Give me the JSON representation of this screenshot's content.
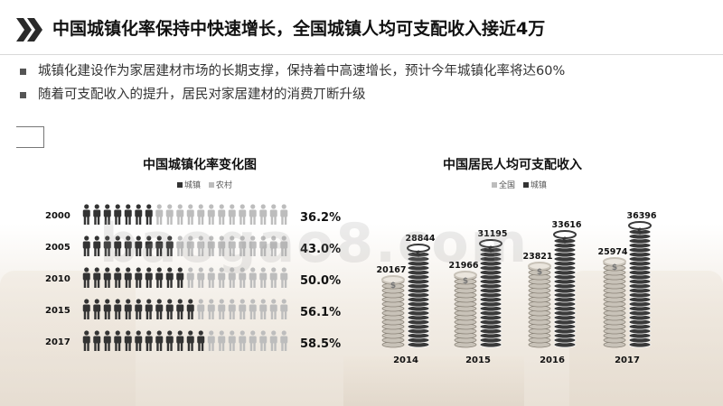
{
  "title": "中国城镇化率保持中快速增长，全国城镇人均可支配收入接近4万",
  "bullets": [
    "城镇化建设作为家居建材市场的长期支撑，保持着中高速增长，预计今年城镇化率将达60%",
    "随着可支配收入的提升，居民对家居建材的消费丌断升级"
  ],
  "watermark": "baogao8.com",
  "colors": {
    "urban": "#333333",
    "rural": "#bdbdbd",
    "coin_dark": "#3a3a3a",
    "coin_light": "#c8c2b8"
  },
  "chart_data": [
    {
      "type": "bar",
      "title": "中国城镇化率变化图",
      "legend": [
        "城镇",
        "农村"
      ],
      "legend_position": "top",
      "categories": [
        "2000",
        "2005",
        "2010",
        "2015",
        "2017"
      ],
      "values": [
        36.2,
        43.0,
        50.0,
        56.1,
        58.5
      ],
      "value_labels": [
        "36.2%",
        "43.0%",
        "50.0%",
        "56.1%",
        "58.5%"
      ],
      "unit": "%",
      "ylim": [
        0,
        100
      ],
      "orientation": "horizontal",
      "icons_per_row": 20,
      "grid": false
    },
    {
      "type": "bar",
      "title": "中国居民人均可支配收入",
      "legend": [
        "全国",
        "城镇"
      ],
      "legend_position": "top",
      "categories": [
        "2014",
        "2015",
        "2016",
        "2017"
      ],
      "series": [
        {
          "name": "全国",
          "values": [
            20167,
            21966,
            23821,
            25974
          ]
        },
        {
          "name": "城镇",
          "values": [
            28844,
            31195,
            33616,
            36396
          ]
        }
      ],
      "ylim": [
        0,
        40000
      ],
      "grid": false
    }
  ]
}
